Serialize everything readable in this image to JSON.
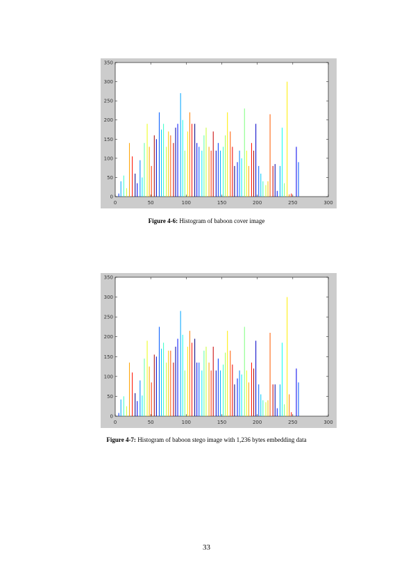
{
  "page_number": "33",
  "colors": {
    "frame": "#cccccc",
    "plot_bg": "#ffffff",
    "axis": "#000000"
  },
  "figures": [
    {
      "caption_lead": "Figure 4-6:",
      "caption_text": " Histogram of baboon cover image"
    },
    {
      "caption_lead": "Figure 4-7:",
      "caption_text": " Histogram of baboon stego image with 1,236 bytes embedding data"
    }
  ],
  "chart_data": [
    {
      "type": "bar",
      "title": "",
      "xlabel": "",
      "ylabel": "",
      "xlim": [
        0,
        300
      ],
      "ylim": [
        0,
        350
      ],
      "x_ticks": [
        "0",
        "50",
        "100",
        "150",
        "200",
        "250",
        "300"
      ],
      "y_ticks": [
        "0",
        "50",
        "100",
        "150",
        "200",
        "250",
        "300",
        "350"
      ],
      "grid": false,
      "colormap": "jet",
      "x": [
        5,
        8,
        12,
        16,
        20,
        24,
        28,
        31,
        35,
        38,
        41,
        45,
        48,
        51,
        55,
        58,
        62,
        65,
        68,
        72,
        75,
        78,
        82,
        85,
        88,
        92,
        95,
        98,
        102,
        105,
        108,
        112,
        115,
        118,
        122,
        125,
        128,
        132,
        135,
        138,
        142,
        145,
        148,
        152,
        155,
        158,
        162,
        165,
        168,
        172,
        175,
        178,
        182,
        185,
        188,
        192,
        195,
        198,
        202,
        205,
        208,
        212,
        215,
        218,
        222,
        225,
        228,
        232,
        235,
        238,
        242,
        245,
        248,
        252,
        255,
        258
      ],
      "values": [
        8,
        40,
        55,
        22,
        140,
        105,
        60,
        35,
        95,
        50,
        140,
        190,
        130,
        80,
        160,
        150,
        220,
        175,
        190,
        130,
        170,
        160,
        140,
        180,
        190,
        270,
        200,
        120,
        170,
        220,
        190,
        190,
        140,
        130,
        120,
        160,
        180,
        130,
        120,
        170,
        120,
        140,
        120,
        130,
        160,
        220,
        170,
        130,
        80,
        90,
        120,
        100,
        230,
        120,
        80,
        140,
        120,
        190,
        80,
        60,
        40,
        30,
        40,
        215,
        80,
        85,
        15,
        80,
        180,
        35,
        300,
        6,
        8,
        0,
        130,
        90
      ]
    },
    {
      "type": "bar",
      "title": "",
      "xlabel": "",
      "ylabel": "",
      "xlim": [
        0,
        300
      ],
      "ylim": [
        0,
        350
      ],
      "x_ticks": [
        "0",
        "50",
        "100",
        "150",
        "200",
        "250",
        "300"
      ],
      "y_ticks": [
        "0",
        "50",
        "100",
        "150",
        "200",
        "250",
        "300",
        "350"
      ],
      "grid": false,
      "colormap": "jet",
      "x": [
        5,
        8,
        12,
        16,
        20,
        24,
        28,
        31,
        35,
        38,
        41,
        45,
        48,
        51,
        55,
        58,
        62,
        65,
        68,
        72,
        75,
        78,
        82,
        85,
        88,
        92,
        95,
        98,
        102,
        105,
        108,
        112,
        115,
        118,
        122,
        125,
        128,
        132,
        135,
        138,
        142,
        145,
        148,
        152,
        155,
        158,
        162,
        165,
        168,
        172,
        175,
        178,
        182,
        185,
        188,
        192,
        195,
        198,
        202,
        205,
        208,
        212,
        215,
        218,
        222,
        225,
        228,
        232,
        235,
        238,
        242,
        245,
        248,
        252,
        255,
        258
      ],
      "values": [
        8,
        42,
        50,
        25,
        135,
        110,
        58,
        38,
        90,
        52,
        145,
        190,
        125,
        85,
        155,
        150,
        225,
        170,
        185,
        135,
        165,
        165,
        135,
        175,
        195,
        265,
        205,
        115,
        175,
        215,
        185,
        195,
        135,
        135,
        115,
        165,
        175,
        135,
        115,
        175,
        115,
        145,
        115,
        130,
        160,
        215,
        165,
        130,
        80,
        95,
        115,
        105,
        225,
        115,
        85,
        135,
        120,
        190,
        80,
        55,
        40,
        35,
        40,
        210,
        80,
        80,
        20,
        80,
        185,
        30,
        300,
        55,
        10,
        0,
        120,
        85
      ]
    }
  ]
}
